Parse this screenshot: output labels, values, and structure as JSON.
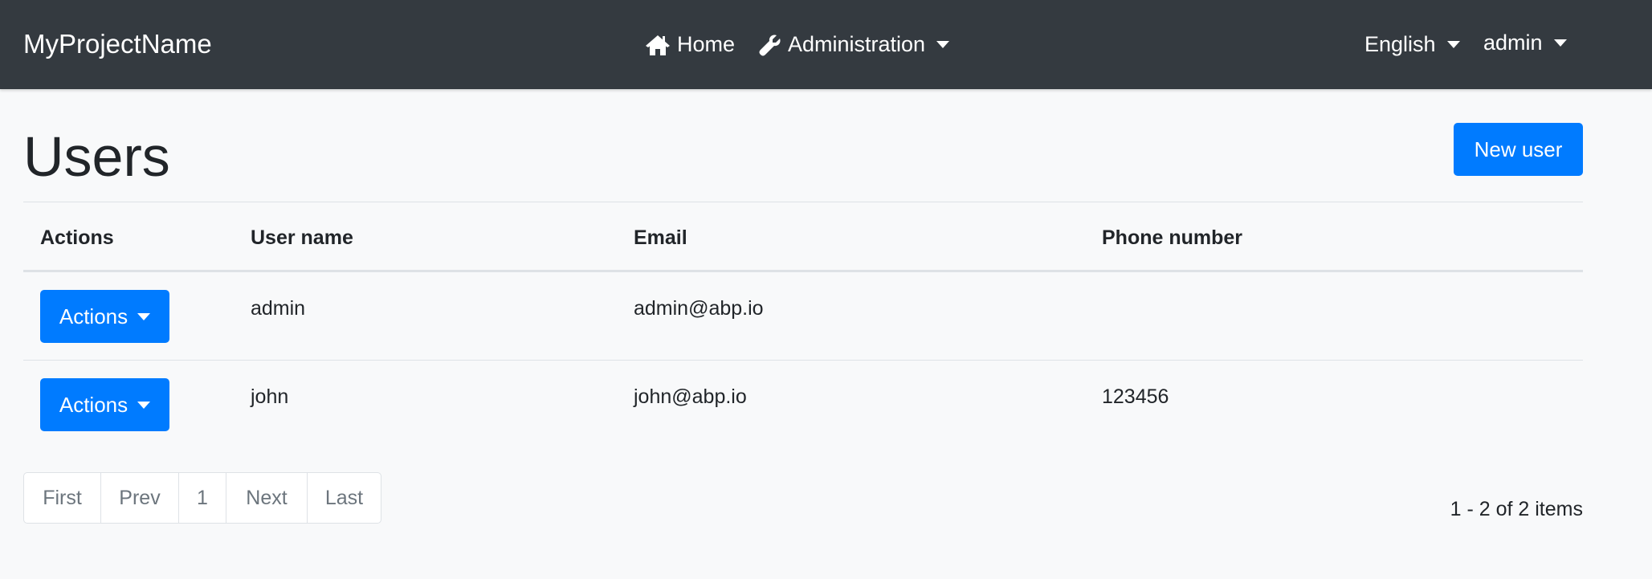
{
  "navbar": {
    "brand": "MyProjectName",
    "home": "Home",
    "administration": "Administration",
    "language": "English",
    "user": "admin"
  },
  "page": {
    "title": "Users",
    "new_user_label": "New user"
  },
  "table": {
    "headers": [
      "Actions",
      "User name",
      "Email",
      "Phone number"
    ],
    "rows": [
      {
        "actions_label": "Actions",
        "username": "admin",
        "email": "admin@abp.io",
        "phone": ""
      },
      {
        "actions_label": "Actions",
        "username": "john",
        "email": "john@abp.io",
        "phone": "123456"
      }
    ]
  },
  "pagination": {
    "first": "First",
    "prev": "Prev",
    "current": "1",
    "next": "Next",
    "last": "Last",
    "summary": "1 - 2 of 2 items"
  },
  "colors": {
    "navbar": "#343a40",
    "primary": "#007bff",
    "background": "#f8f9fa"
  }
}
